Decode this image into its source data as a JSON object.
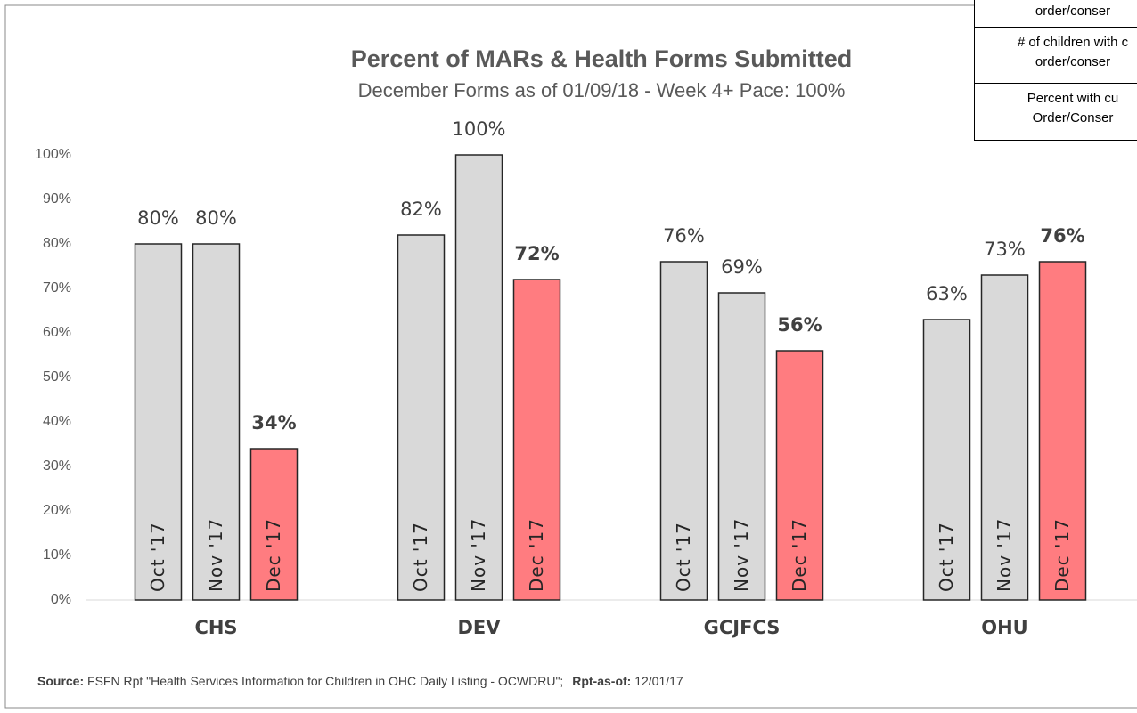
{
  "chart_data": {
    "type": "bar",
    "title": "Percent of MARs & Health Forms Submitted",
    "subtitle": "December Forms as of 01/09/18 - Week 4+ Pace: 100%",
    "categories": [
      "CHS",
      "DEV",
      "GCJFCS",
      "OHU"
    ],
    "series": [
      {
        "name": "Oct '17",
        "color": "#d9d9d9",
        "values": [
          80,
          82,
          76,
          63
        ],
        "value_labels": [
          "80%",
          "82%",
          "76%",
          "63%"
        ]
      },
      {
        "name": "Nov '17",
        "color": "#d9d9d9",
        "values": [
          80,
          100,
          69,
          73
        ],
        "value_labels": [
          "80%",
          "100%",
          "69%",
          "73%"
        ]
      },
      {
        "name": "Dec '17",
        "color": "#ff7c80",
        "values": [
          34,
          72,
          56,
          76
        ],
        "value_labels": [
          "34%",
          "72%",
          "56%",
          "76%"
        ]
      }
    ],
    "ylim": [
      0,
      100
    ],
    "yticks": [
      {
        "value": 0,
        "label": "0%"
      },
      {
        "value": 10,
        "label": "10%"
      },
      {
        "value": 20,
        "label": "20%"
      },
      {
        "value": 30,
        "label": "30%"
      },
      {
        "value": 40,
        "label": "40%"
      },
      {
        "value": 50,
        "label": "50%"
      },
      {
        "value": 60,
        "label": "60%"
      },
      {
        "value": 70,
        "label": "70%"
      },
      {
        "value": 80,
        "label": "80%"
      },
      {
        "value": 90,
        "label": "90%"
      },
      {
        "value": 100,
        "label": "100%"
      }
    ],
    "grid": false,
    "footnote": {
      "source_label": "Source:",
      "source_text": "FSFN Rpt \"Health Services Information for Children in OHC Daily Listing - OCWDRU\";",
      "asof_label": "Rpt-as-of:",
      "asof_text": "12/01/17"
    }
  },
  "side_table": {
    "rows": [
      [
        "order/conser"
      ],
      [
        "# of children with c",
        "order/conser"
      ],
      [
        "Percent with cu",
        "Order/Conser"
      ]
    ]
  }
}
